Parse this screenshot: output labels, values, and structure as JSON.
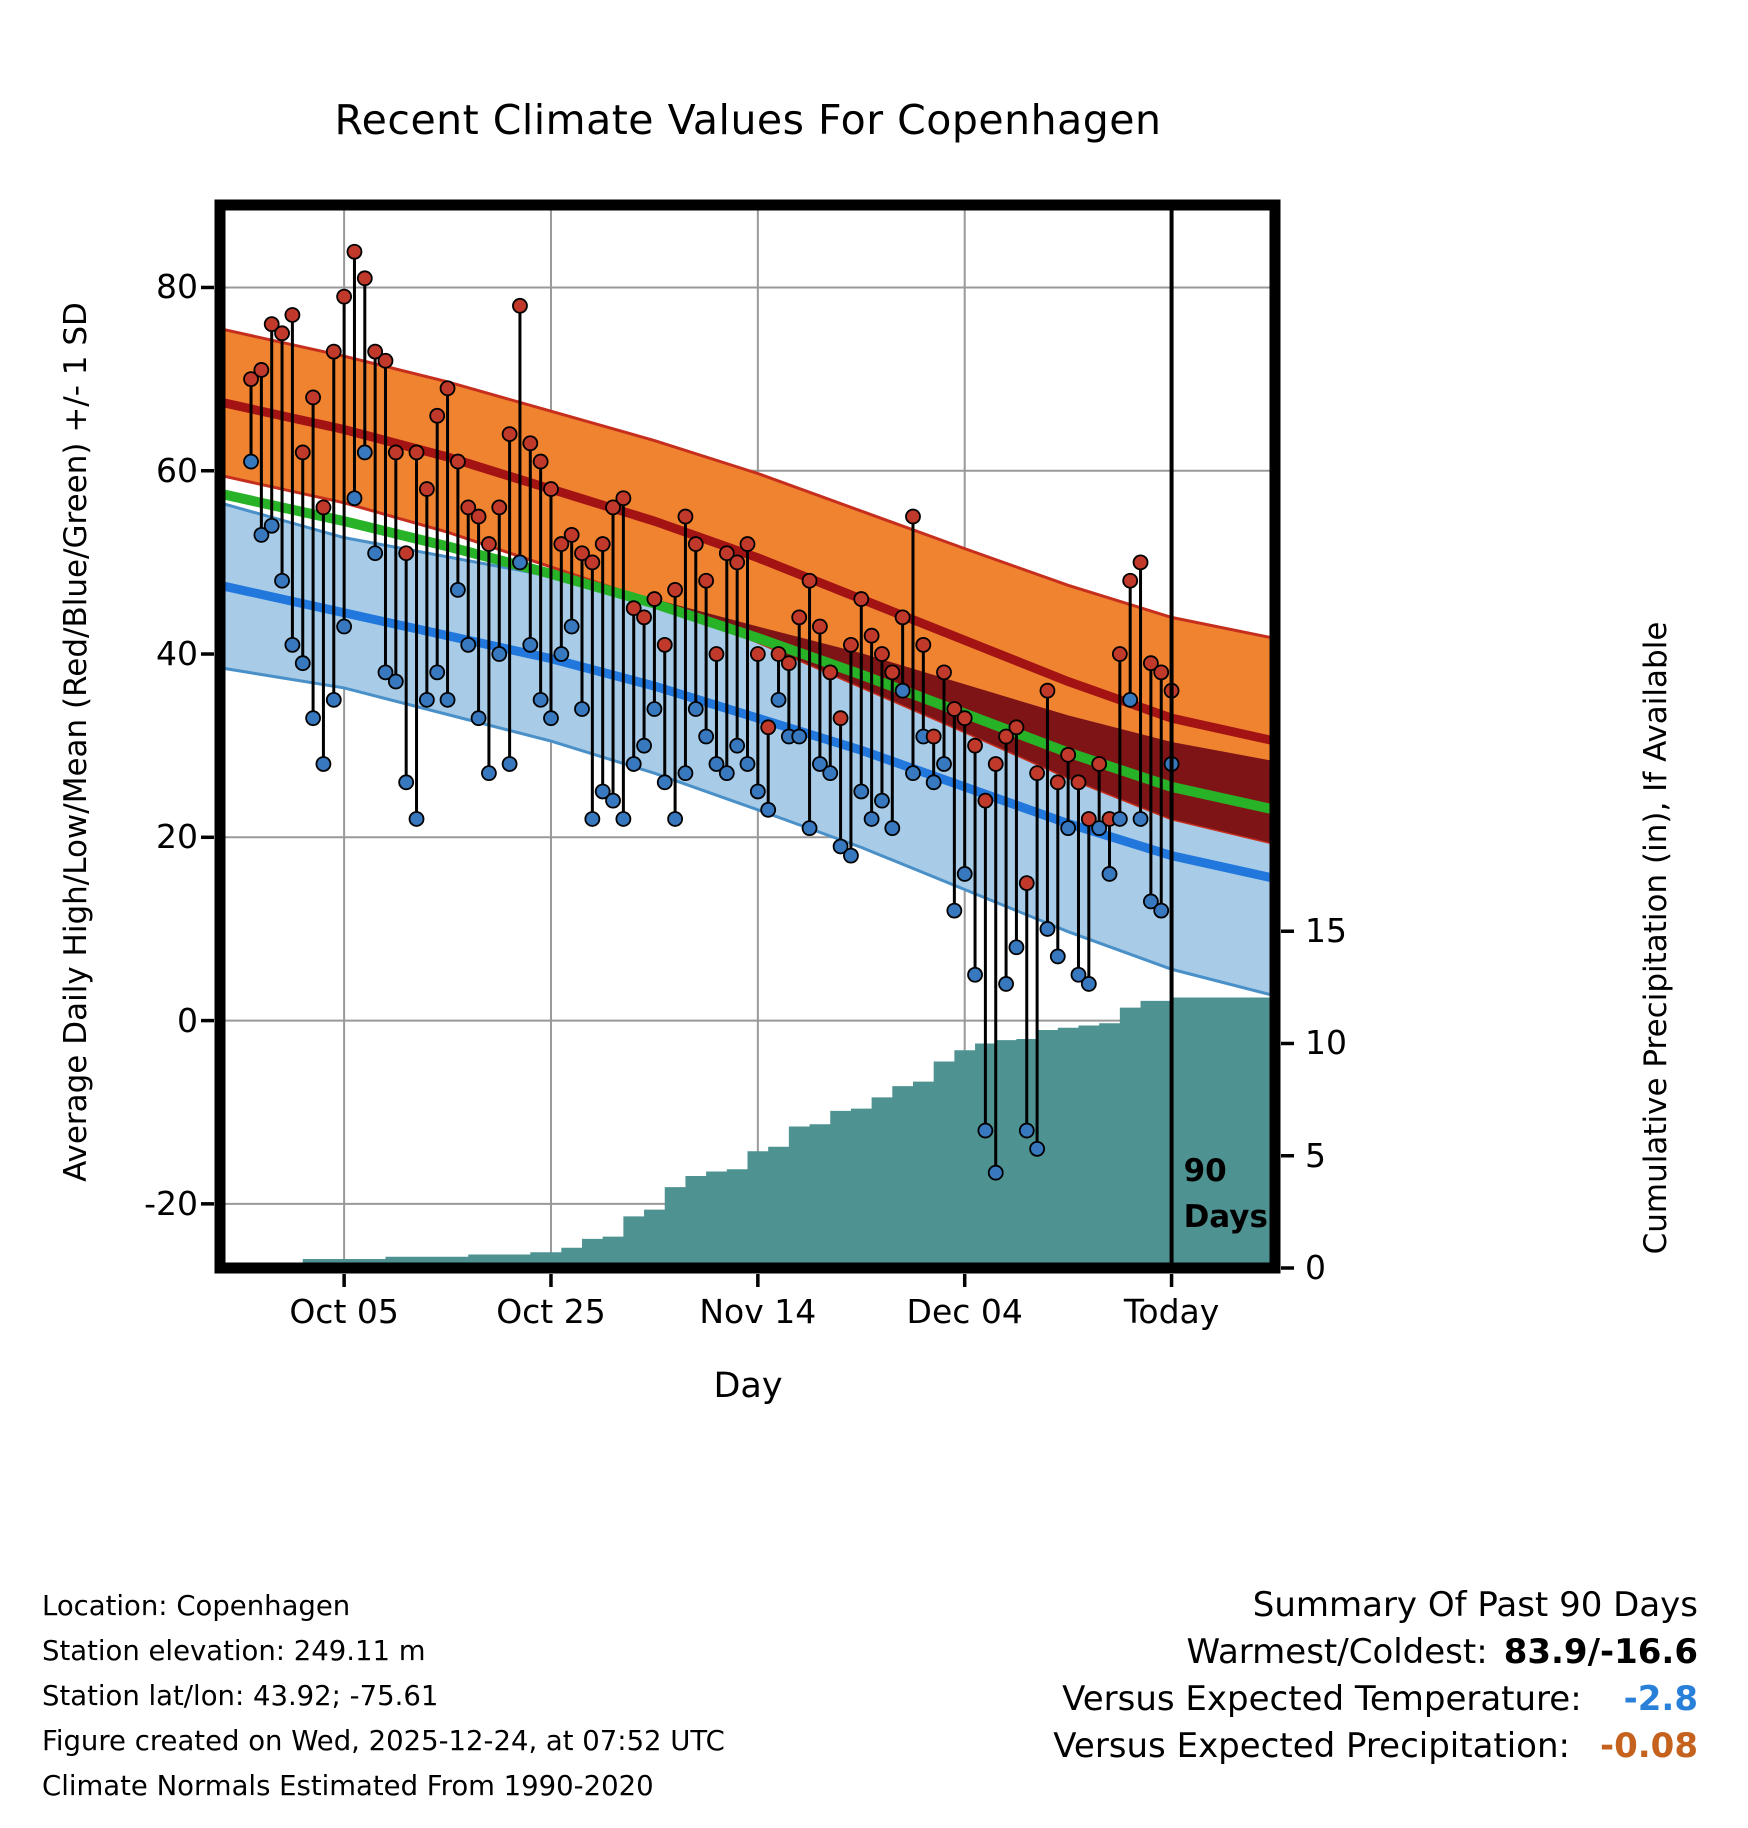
{
  "title": "Recent Climate Values For Copenhagen",
  "axes": {
    "left_label": "Average Daily High/Low/Mean (Red/Blue/Green) +/- 1 SD",
    "right_label": "Cumulative Precipitation (in), If Available",
    "x_label": "Day",
    "left_ticks": [
      80,
      60,
      40,
      20,
      0,
      -20
    ],
    "right_ticks": [
      15,
      10,
      5,
      0
    ],
    "x_ticks": [
      {
        "day": 10,
        "label": "Oct 05"
      },
      {
        "day": 30,
        "label": "Oct 25"
      },
      {
        "day": 50,
        "label": "Nov 14"
      },
      {
        "day": 70,
        "label": "Dec 04"
      },
      {
        "day": 90,
        "label": "Today"
      }
    ]
  },
  "annotation": {
    "day": 90,
    "line1": "90",
    "line2": "Days"
  },
  "colors": {
    "high_band": "#F08330",
    "high_edge": "#C62F1E",
    "high_mean_line": "#A31313",
    "overlap_band": "#7E1416",
    "low_band": "#A8CCE8",
    "low_edge": "#4A90C8",
    "low_mean_line": "#2277DD",
    "mean_line": "#28B228",
    "high_dot": "#C1392B",
    "low_dot": "#3778BE",
    "precip_area": "#4F9292",
    "grid": "#999999",
    "accent_blue": "#2980D9",
    "accent_orange": "#C4621E"
  },
  "chart_data": {
    "type": "line",
    "title": "Recent Climate Values For Copenhagen",
    "xlabel": "Day",
    "ylabel_left": "Average Daily High/Low/Mean (Red/Blue/Green) +/- 1 SD",
    "ylabel_right": "Cumulative Precipitation (in), If Available",
    "xlim_days": [
      -2,
      100
    ],
    "ylim_temp": [
      -27,
      89
    ],
    "precip_axis": {
      "ticks": [
        15,
        10,
        5,
        0
      ],
      "temp_per_inch": 2.45
    },
    "today_day": 90,
    "observed": {
      "days_start": 1,
      "high": [
        70,
        71,
        76,
        75,
        77,
        62,
        68,
        56,
        73,
        79,
        83.9,
        81,
        73,
        72,
        62,
        51,
        62,
        58,
        66,
        69,
        61,
        56,
        55,
        52,
        56,
        64,
        78,
        63,
        61,
        58,
        52,
        53,
        51,
        50,
        52,
        56,
        57,
        45,
        44,
        46,
        41,
        47,
        55,
        52,
        48,
        40,
        51,
        50,
        52,
        40,
        32,
        40,
        39,
        44,
        48,
        43,
        38,
        33,
        41,
        46,
        42,
        40,
        38,
        44,
        55,
        41,
        31,
        38,
        34,
        33,
        30,
        24,
        28,
        31,
        32,
        15,
        27,
        36,
        26,
        29,
        26,
        22,
        28,
        22,
        40,
        48,
        50,
        39,
        38,
        36
      ],
      "low": [
        61,
        53,
        54,
        48,
        41,
        39,
        33,
        28,
        35,
        43,
        57,
        62,
        51,
        38,
        37,
        26,
        22,
        35,
        38,
        35,
        47,
        41,
        33,
        27,
        40,
        28,
        50,
        41,
        35,
        33,
        40,
        43,
        34,
        22,
        25,
        24,
        22,
        28,
        30,
        34,
        26,
        22,
        27,
        34,
        31,
        28,
        27,
        30,
        28,
        25,
        23,
        35,
        31,
        31,
        21,
        28,
        27,
        19,
        18,
        25,
        22,
        24,
        21,
        36,
        27,
        31,
        26,
        28,
        12,
        16,
        5,
        -12,
        -16.6,
        4,
        8,
        -12,
        -14,
        10,
        7,
        21,
        5,
        4,
        21,
        16,
        22,
        35,
        22,
        13,
        12,
        28
      ]
    },
    "normals": {
      "days": [
        -2,
        10,
        20,
        30,
        40,
        50,
        60,
        70,
        80,
        90,
        100
      ],
      "high_mean": [
        67.5,
        64.5,
        61.5,
        58,
        54.5,
        50.5,
        46,
        41.5,
        37,
        33,
        30.5
      ],
      "high_sd": [
        8,
        8,
        8.2,
        8.5,
        8.8,
        9.2,
        9.6,
        10,
        10.5,
        11,
        11.2
      ],
      "low_mean": [
        47.5,
        44.5,
        42,
        39.5,
        36.5,
        33,
        29.5,
        25.5,
        21.5,
        18,
        15.5
      ],
      "low_sd": [
        9,
        8.2,
        8.6,
        9,
        9.5,
        10,
        10.6,
        11.2,
        11.8,
        12.4,
        12.8
      ],
      "mean": [
        57.5,
        54.5,
        51.75,
        48.75,
        45.5,
        41.75,
        37.75,
        33.5,
        29.25,
        25.5,
        23
      ]
    },
    "precip_cumulative": {
      "days": [
        -2,
        6,
        14,
        22,
        28,
        31,
        33,
        35,
        37,
        39,
        41,
        43,
        45,
        47,
        49,
        51,
        53,
        55,
        57,
        59,
        61,
        63,
        65,
        67,
        69,
        71,
        73,
        75,
        77,
        79,
        81,
        83,
        85,
        87,
        90,
        100
      ],
      "values": [
        0.2,
        0.4,
        0.5,
        0.6,
        0.7,
        0.9,
        1.3,
        1.4,
        2.3,
        2.6,
        3.6,
        4.1,
        4.3,
        4.4,
        5.2,
        5.4,
        6.3,
        6.4,
        7.0,
        7.1,
        7.6,
        8.1,
        8.3,
        9.2,
        9.7,
        10.0,
        10.15,
        10.2,
        10.6,
        10.7,
        10.8,
        10.9,
        11.6,
        11.9,
        12.05,
        12.1
      ]
    }
  },
  "footer": {
    "lines": [
      "Location: Copenhagen",
      "Station elevation: 249.11 m",
      "Station lat/lon: 43.92; -75.61",
      "Figure created on Wed, 2025-12-24, at 07:52 UTC",
      "Climate Normals Estimated From 1990-2020"
    ]
  },
  "summary": {
    "heading": "Summary Of Past 90 Days",
    "rows": [
      {
        "label": "Warmest/Coldest:",
        "value": "83.9/-16.6",
        "style": "bold"
      },
      {
        "label": "Versus Expected Temperature:",
        "value": "-2.8",
        "style": "blue"
      },
      {
        "label": "Versus Expected Precipitation:",
        "value": "-0.08",
        "style": "orange"
      }
    ]
  }
}
